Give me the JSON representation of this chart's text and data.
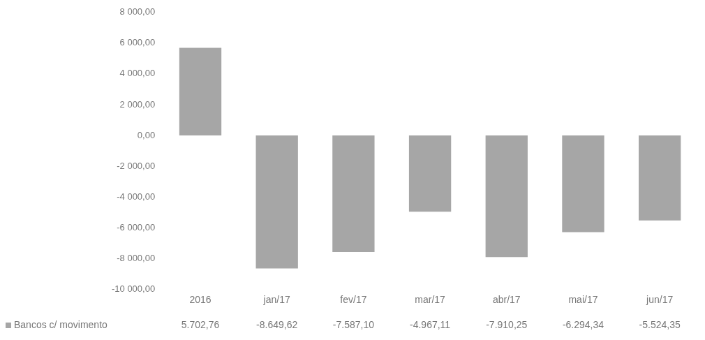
{
  "chart_data": {
    "type": "bar",
    "categories": [
      "2016",
      "jan/17",
      "fev/17",
      "mar/17",
      "abr/17",
      "mai/17",
      "jun/17"
    ],
    "series": [
      {
        "name": "Bancos c/ movimento",
        "color": "#a6a6a6",
        "values": [
          5702.76,
          -8649.62,
          -7587.1,
          -4967.11,
          -7910.25,
          -6294.34,
          -5524.35
        ],
        "value_labels": [
          "5.702,76",
          "-8.649,62",
          "-7.587,10",
          "-4.967,11",
          "-7.910,25",
          "-6.294,34",
          "-5.524,35"
        ]
      }
    ],
    "ylim": [
      -10000,
      8000
    ],
    "yticks": [
      {
        "value": -10000,
        "label": "-10 000,00"
      },
      {
        "value": -8000,
        "label": "-8 000,00"
      },
      {
        "value": -6000,
        "label": "-6 000,00"
      },
      {
        "value": -4000,
        "label": "-4 000,00"
      },
      {
        "value": -2000,
        "label": "-2 000,00"
      },
      {
        "value": 0,
        "label": "0,00"
      },
      {
        "value": 2000,
        "label": "2 000,00"
      },
      {
        "value": 4000,
        "label": "4 000,00"
      },
      {
        "value": 6000,
        "label": "6 000,00"
      },
      {
        "value": 8000,
        "label": "8 000,00"
      }
    ],
    "grid": false,
    "legend": "bottom"
  }
}
